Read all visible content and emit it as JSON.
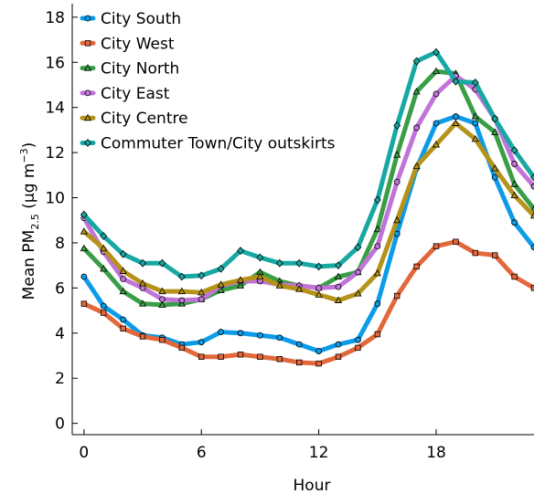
{
  "chart_data": {
    "type": "line",
    "xlabel": "Hour",
    "ylabel_main": "Mean PM",
    "ylabel_sub": "2.5",
    "ylabel_unit_open": " (μg m",
    "ylabel_sup": "−3",
    "ylabel_close": ")",
    "xlim": [
      -0.6,
      23
    ],
    "ylim": [
      -0.5,
      18.6
    ],
    "xticks": [
      0,
      6,
      12,
      18
    ],
    "yticks": [
      0,
      2,
      4,
      6,
      8,
      10,
      12,
      14,
      16,
      18
    ],
    "grid": false,
    "legend_position": "top-left",
    "x": [
      0,
      1,
      2,
      3,
      4,
      5,
      6,
      7,
      8,
      9,
      10,
      11,
      12,
      13,
      14,
      15,
      16,
      17,
      18,
      19,
      20,
      21,
      22,
      23
    ],
    "series": [
      {
        "name": "City South",
        "color": "#0b9be8",
        "marker": "circle",
        "values": [
          6.5,
          5.2,
          4.6,
          3.9,
          3.8,
          3.5,
          3.6,
          4.05,
          4.0,
          3.9,
          3.8,
          3.5,
          3.2,
          3.5,
          3.7,
          5.3,
          8.4,
          11.3,
          13.3,
          13.6,
          13.3,
          10.9,
          8.9,
          7.8
        ]
      },
      {
        "name": "City West",
        "color": "#e2683c",
        "marker": "square",
        "values": [
          5.3,
          4.9,
          4.2,
          3.85,
          3.7,
          3.35,
          2.95,
          2.95,
          3.05,
          2.95,
          2.85,
          2.7,
          2.65,
          2.95,
          3.35,
          3.95,
          5.65,
          6.95,
          7.85,
          8.05,
          7.55,
          7.45,
          6.5,
          6.0
        ]
      },
      {
        "name": "City North",
        "color": "#3a9e47",
        "marker": "triangle",
        "values": [
          7.75,
          6.85,
          5.85,
          5.3,
          5.25,
          5.3,
          5.5,
          5.9,
          6.1,
          6.7,
          6.3,
          6.1,
          6.0,
          6.5,
          6.7,
          8.6,
          11.9,
          14.7,
          15.6,
          15.5,
          13.6,
          12.9,
          10.6,
          9.5
        ]
      },
      {
        "name": "City East",
        "color": "#c174d8",
        "marker": "circle",
        "values": [
          9.1,
          7.6,
          6.4,
          6.0,
          5.5,
          5.45,
          5.5,
          6.1,
          6.3,
          6.3,
          6.15,
          6.1,
          6.0,
          6.05,
          6.7,
          7.85,
          10.7,
          13.1,
          14.6,
          15.4,
          14.8,
          13.5,
          11.5,
          10.5
        ]
      },
      {
        "name": "City Centre",
        "color": "#b59319",
        "marker": "triangle",
        "values": [
          8.5,
          7.75,
          6.75,
          6.2,
          5.85,
          5.85,
          5.8,
          6.15,
          6.35,
          6.5,
          6.1,
          5.95,
          5.7,
          5.45,
          5.75,
          6.65,
          9.0,
          11.4,
          12.35,
          13.3,
          12.6,
          11.3,
          10.1,
          9.2
        ]
      },
      {
        "name": "Commuter Town/City outskirts",
        "color": "#17a8a3",
        "marker": "diamond",
        "values": [
          9.25,
          8.3,
          7.5,
          7.1,
          7.1,
          6.5,
          6.55,
          6.85,
          7.65,
          7.35,
          7.1,
          7.1,
          6.95,
          7.0,
          7.8,
          9.9,
          13.2,
          16.05,
          16.45,
          15.15,
          15.1,
          13.5,
          12.1,
          10.9
        ]
      }
    ]
  }
}
